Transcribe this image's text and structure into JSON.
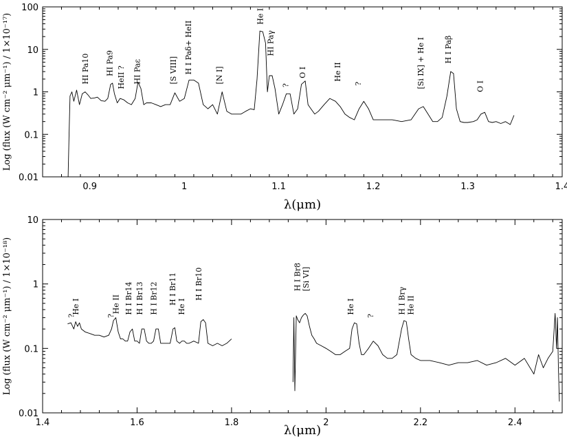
{
  "chart_data": [
    {
      "type": "line",
      "panel": "top",
      "xlabel": "λ(μm)",
      "ylabel": "Log (flux (W cm⁻² μm⁻¹) / 1×10⁻¹⁷)",
      "xlim": [
        0.85,
        1.4
      ],
      "ylim": [
        0.01,
        100
      ],
      "yscale": "log",
      "x_ticks": [
        0.9,
        1.0,
        1.1,
        1.2,
        1.3,
        1.4
      ],
      "x_tick_labels": [
        "0.9",
        "1",
        "1.1",
        "1.2",
        "1.3",
        "1.4"
      ],
      "y_ticks": [
        0.01,
        0.1,
        1,
        10,
        100
      ],
      "y_tick_labels": [
        "0.01",
        "0.1",
        "1",
        "10",
        "100"
      ],
      "grid": false,
      "color": "#000000",
      "series": [
        {
          "x": [
            0.877,
            0.878,
            0.879,
            0.881,
            0.883,
            0.886,
            0.889,
            0.892,
            0.895,
            0.898,
            0.901,
            0.905,
            0.908,
            0.912,
            0.916,
            0.919,
            0.922,
            0.924,
            0.926,
            0.929,
            0.932,
            0.936,
            0.94,
            0.944,
            0.948,
            0.951,
            0.954,
            0.957,
            0.96,
            0.965,
            0.97,
            0.975,
            0.98,
            0.985,
            0.99,
            0.995,
            1.0,
            1.005,
            1.01,
            1.015,
            1.02,
            1.025,
            1.03,
            1.035,
            1.04,
            1.045,
            1.05,
            1.055,
            1.06,
            1.065,
            1.07,
            1.074,
            1.077,
            1.08,
            1.083,
            1.086,
            1.088,
            1.09,
            1.093,
            1.096,
            1.1,
            1.104,
            1.108,
            1.112,
            1.116,
            1.12,
            1.124,
            1.128,
            1.131,
            1.134,
            1.138,
            1.142,
            1.148,
            1.154,
            1.16,
            1.165,
            1.17,
            1.175,
            1.18,
            1.185,
            1.19,
            1.195,
            1.2,
            1.21,
            1.22,
            1.23,
            1.24,
            1.248,
            1.253,
            1.258,
            1.263,
            1.268,
            1.273,
            1.278,
            1.282,
            1.285,
            1.288,
            1.292,
            1.296,
            1.3,
            1.306,
            1.31,
            1.314,
            1.318,
            1.322,
            1.326,
            1.33,
            1.335,
            1.34,
            1.345,
            1.349
          ],
          "y": [
            0.0001,
            0.1,
            0.8,
            1.0,
            0.6,
            1.1,
            0.5,
            0.9,
            1.0,
            0.85,
            0.7,
            0.72,
            0.75,
            0.62,
            0.6,
            0.7,
            1.5,
            1.6,
            0.9,
            0.55,
            0.7,
            0.65,
            0.55,
            0.5,
            0.7,
            1.7,
            1.2,
            0.5,
            0.55,
            0.55,
            0.5,
            0.45,
            0.5,
            0.5,
            0.95,
            0.6,
            0.7,
            1.9,
            1.9,
            1.6,
            0.5,
            0.4,
            0.5,
            0.3,
            1.0,
            0.35,
            0.3,
            0.3,
            0.3,
            0.35,
            0.4,
            0.38,
            2.0,
            27.0,
            26.0,
            14.0,
            1.0,
            2.4,
            2.4,
            1.2,
            0.3,
            0.5,
            0.9,
            0.9,
            0.3,
            0.4,
            1.5,
            1.8,
            0.5,
            0.4,
            0.3,
            0.35,
            0.5,
            0.7,
            0.6,
            0.45,
            0.3,
            0.25,
            0.22,
            0.4,
            0.6,
            0.4,
            0.22,
            0.22,
            0.22,
            0.2,
            0.22,
            0.4,
            0.45,
            0.3,
            0.2,
            0.2,
            0.25,
            0.8,
            3.0,
            2.7,
            0.4,
            0.2,
            0.19,
            0.19,
            0.2,
            0.22,
            0.3,
            0.33,
            0.2,
            0.19,
            0.2,
            0.18,
            0.2,
            0.17,
            0.28
          ]
        }
      ],
      "annotations": [
        {
          "text": "HI Pa10",
          "x": 0.898,
          "y": 1.3
        },
        {
          "text": "HI Pa9",
          "x": 0.924,
          "y": 2.0
        },
        {
          "text": "HeII ?",
          "x": 0.936,
          "y": 1.0
        },
        {
          "text": "HI Paε",
          "x": 0.953,
          "y": 1.3
        },
        {
          "text": "[S VIII]",
          "x": 0.991,
          "y": 1.3
        },
        {
          "text": "H I Paδ+ HeII",
          "x": 1.007,
          "y": 2.2
        },
        {
          "text": "[N I]",
          "x": 1.04,
          "y": 1.3
        },
        {
          "text": "He I",
          "x": 1.083,
          "y": 33
        },
        {
          "text": "HI Paγ",
          "x": 1.094,
          "y": 6
        },
        {
          "text": "?",
          "x": 1.11,
          "y": 1.1
        },
        {
          "text": "O I",
          "x": 1.128,
          "y": 1.8
        },
        {
          "text": "He II",
          "x": 1.165,
          "y": 1.5
        },
        {
          "text": "?",
          "x": 1.187,
          "y": 1.2
        },
        {
          "text": "[Si IX] + He I",
          "x": 1.253,
          "y": 1.0
        },
        {
          "text": "H I Paβ",
          "x": 1.282,
          "y": 4.0
        },
        {
          "text": "O I",
          "x": 1.316,
          "y": 0.85
        }
      ]
    },
    {
      "type": "line",
      "panel": "bottom",
      "xlabel": "λ(μm)",
      "ylabel": "Log (flux (W cm⁻² μm⁻¹) / 1×10⁻¹⁸)",
      "xlim": [
        1.4,
        2.5
      ],
      "ylim": [
        0.01,
        10
      ],
      "yscale": "log",
      "x_ticks": [
        1.4,
        1.6,
        1.8,
        2.0,
        2.2,
        2.4
      ],
      "x_tick_labels": [
        "1.4",
        "1.6",
        "1.8",
        "2",
        "2.2",
        "2.4"
      ],
      "y_ticks": [
        0.01,
        0.1,
        1,
        10
      ],
      "y_tick_labels": [
        "0.01",
        "0.1",
        "1",
        "10"
      ],
      "grid": false,
      "color": "#000000",
      "series": [
        {
          "x": [
            1.453,
            1.46,
            1.466,
            1.47,
            1.474,
            1.478,
            1.482,
            1.49,
            1.5,
            1.51,
            1.52,
            1.53,
            1.54,
            1.546,
            1.55,
            1.555,
            1.56,
            1.565,
            1.57,
            1.575,
            1.58,
            1.585,
            1.59,
            1.595,
            1.6,
            1.605,
            1.61,
            1.615,
            1.62,
            1.625,
            1.63,
            1.635,
            1.64,
            1.645,
            1.65,
            1.66,
            1.67,
            1.676,
            1.68,
            1.684,
            1.69,
            1.695,
            1.7,
            1.705,
            1.71,
            1.72,
            1.73,
            1.735,
            1.74,
            1.745,
            1.75,
            1.76,
            1.77,
            1.78,
            1.79,
            1.8
          ],
          "y": [
            0.24,
            0.25,
            0.2,
            0.26,
            0.22,
            0.25,
            0.2,
            0.18,
            0.17,
            0.16,
            0.16,
            0.15,
            0.16,
            0.2,
            0.27,
            0.3,
            0.18,
            0.14,
            0.14,
            0.13,
            0.13,
            0.18,
            0.2,
            0.13,
            0.13,
            0.12,
            0.2,
            0.2,
            0.13,
            0.12,
            0.12,
            0.13,
            0.2,
            0.2,
            0.12,
            0.12,
            0.12,
            0.2,
            0.21,
            0.13,
            0.12,
            0.13,
            0.13,
            0.12,
            0.12,
            0.13,
            0.12,
            0.26,
            0.28,
            0.25,
            0.12,
            0.11,
            0.12,
            0.11,
            0.12,
            0.14
          ]
        },
        {
          "x": [
            1.93,
            1.932,
            1.934,
            1.937,
            1.94,
            1.944,
            1.948,
            1.952,
            1.956,
            1.96,
            1.965,
            1.97,
            1.975,
            1.98,
            1.99,
            2.0,
            2.01,
            2.02,
            2.03,
            2.04,
            2.05,
            2.055,
            2.06,
            2.065,
            2.07,
            2.075,
            2.08,
            2.09,
            2.1,
            2.11,
            2.12,
            2.13,
            2.14,
            2.15,
            2.16,
            2.165,
            2.17,
            2.175,
            2.18,
            2.19,
            2.2,
            2.22,
            2.24,
            2.26,
            2.28,
            2.3,
            2.32,
            2.34,
            2.36,
            2.38,
            2.4,
            2.42,
            2.44,
            2.45,
            2.46,
            2.47,
            2.48,
            2.485,
            2.488,
            2.49,
            2.492,
            2.494
          ],
          "y": [
            0.03,
            0.3,
            0.022,
            0.32,
            0.28,
            0.25,
            0.3,
            0.33,
            0.35,
            0.32,
            0.22,
            0.16,
            0.14,
            0.12,
            0.11,
            0.1,
            0.09,
            0.08,
            0.08,
            0.09,
            0.1,
            0.2,
            0.25,
            0.24,
            0.12,
            0.08,
            0.08,
            0.1,
            0.13,
            0.11,
            0.08,
            0.07,
            0.07,
            0.08,
            0.2,
            0.27,
            0.26,
            0.14,
            0.08,
            0.07,
            0.065,
            0.065,
            0.06,
            0.055,
            0.06,
            0.06,
            0.065,
            0.055,
            0.06,
            0.07,
            0.055,
            0.07,
            0.04,
            0.08,
            0.05,
            0.07,
            0.09,
            0.35,
            0.1,
            0.3,
            0.05,
            0.015
          ]
        }
      ],
      "annotations": [
        {
          "text": "?",
          "x": 1.466,
          "y": 0.27
        },
        {
          "text": "He I",
          "x": 1.476,
          "y": 0.3
        },
        {
          "text": "?",
          "x": 1.55,
          "y": 0.27
        },
        {
          "text": "He II",
          "x": 1.561,
          "y": 0.31
        },
        {
          "text": "H I Br14",
          "x": 1.588,
          "y": 0.3
        },
        {
          "text": "H I Br13",
          "x": 1.611,
          "y": 0.3
        },
        {
          "text": "H I Br12",
          "x": 1.641,
          "y": 0.3
        },
        {
          "text": "H I Br11",
          "x": 1.681,
          "y": 0.42
        },
        {
          "text": "He I",
          "x": 1.7,
          "y": 0.3
        },
        {
          "text": "H I Br10",
          "x": 1.736,
          "y": 0.5
        },
        {
          "text": "H I Br8",
          "x": 1.945,
          "y": 0.7
        },
        {
          "text": "[Si VI]",
          "x": 1.963,
          "y": 0.7
        },
        {
          "text": "He I",
          "x": 2.058,
          "y": 0.3
        },
        {
          "text": "?",
          "x": 2.1,
          "y": 0.27
        },
        {
          "text": "H I Brγ",
          "x": 2.166,
          "y": 0.3
        },
        {
          "text": "He II",
          "x": 2.185,
          "y": 0.3
        }
      ]
    }
  ]
}
